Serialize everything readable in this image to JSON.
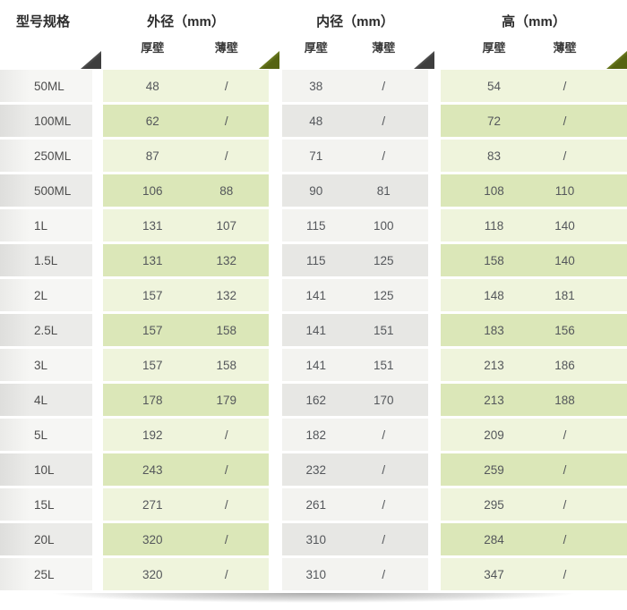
{
  "header": {
    "model_label": "型号规格",
    "groups": [
      {
        "label": "外径（mm）",
        "sub": [
          "厚壁",
          "薄壁"
        ]
      },
      {
        "label": "内径（mm）",
        "sub": [
          "厚壁",
          "薄壁"
        ]
      },
      {
        "label": "高（mm）",
        "sub": [
          "厚壁",
          "薄壁"
        ]
      }
    ]
  },
  "chart_data": {
    "type": "table",
    "title": "",
    "column_groups": [
      "型号规格",
      "外径（mm）",
      "内径（mm）",
      "高（mm）"
    ],
    "sub_columns": [
      "厚壁",
      "薄壁"
    ],
    "columns": [
      "型号规格",
      "外径厚壁",
      "外径薄壁",
      "内径厚壁",
      "内径薄壁",
      "高厚壁",
      "高薄壁"
    ],
    "rows": [
      [
        "50ML",
        "48",
        "/",
        "38",
        "/",
        "54",
        "/"
      ],
      [
        "100ML",
        "62",
        "/",
        "48",
        "/",
        "72",
        "/"
      ],
      [
        "250ML",
        "87",
        "/",
        "71",
        "/",
        "83",
        "/"
      ],
      [
        "500ML",
        "106",
        "88",
        "90",
        "81",
        "108",
        "110"
      ],
      [
        "1L",
        "131",
        "107",
        "115",
        "100",
        "118",
        "140"
      ],
      [
        "1.5L",
        "131",
        "132",
        "115",
        "125",
        "158",
        "140"
      ],
      [
        "2L",
        "157",
        "132",
        "141",
        "125",
        "148",
        "181"
      ],
      [
        "2.5L",
        "157",
        "158",
        "141",
        "151",
        "183",
        "156"
      ],
      [
        "3L",
        "157",
        "158",
        "141",
        "151",
        "213",
        "186"
      ],
      [
        "4L",
        "178",
        "179",
        "162",
        "170",
        "213",
        "188"
      ],
      [
        "5L",
        "192",
        "/",
        "182",
        "/",
        "209",
        "/"
      ],
      [
        "10L",
        "243",
        "/",
        "232",
        "/",
        "259",
        "/"
      ],
      [
        "15L",
        "271",
        "/",
        "261",
        "/",
        "295",
        "/"
      ],
      [
        "20L",
        "320",
        "/",
        "310",
        "/",
        "284",
        "/"
      ],
      [
        "25L",
        "320",
        "/",
        "310",
        "/",
        "347",
        "/"
      ]
    ]
  },
  "colors": {
    "green_odd": "#eff4dc",
    "green_even": "#dbe7b8",
    "gray_odd": "#f3f3f0",
    "gray_even": "#e7e7e4",
    "model_odd": "#f6f6f4",
    "model_odd_edge": "#eaeae8",
    "model_even": "#ebebe9",
    "model_even_edge": "#dededc",
    "triangle_dark": "#3e3e3e",
    "triangle_olive": "#556312",
    "header_text": "#2d2d2d",
    "subheader_text": "#3a3a3a",
    "data_text": "#54575b",
    "model_text": "#4c4c4c"
  }
}
